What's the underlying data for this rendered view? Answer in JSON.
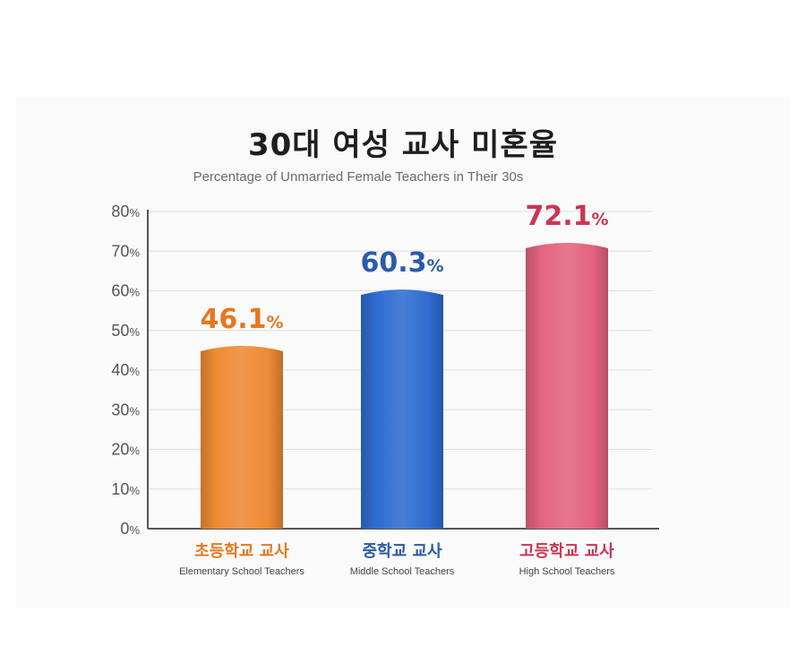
{
  "chart_data": {
    "type": "bar",
    "title": "30대 여성 교사 미혼율",
    "subtitle": "Percentage of Unmarried Female Teachers in Their 30s",
    "xlabel": "",
    "ylabel": "",
    "ylim": [
      0,
      80
    ],
    "yticks": [
      0,
      10,
      20,
      30,
      40,
      50,
      60,
      70,
      80
    ],
    "ytick_unit": "%",
    "value_unit": "%",
    "grid": true,
    "categories": [
      "초등학교 교사",
      "중학교 교사",
      "고등학교 교사"
    ],
    "categories_en": [
      "Elementary School Teachers",
      "Middle School Teachers",
      "High School Teachers"
    ],
    "values": [
      46.1,
      60.3,
      72.1
    ],
    "value_labels": [
      "46.1",
      "60.3",
      "72.1"
    ],
    "colors": [
      "#ee8a35",
      "#2f6cd0",
      "#e3637f"
    ],
    "label_colors": [
      "#e5781f",
      "#2b5aa8",
      "#cc3554"
    ]
  }
}
